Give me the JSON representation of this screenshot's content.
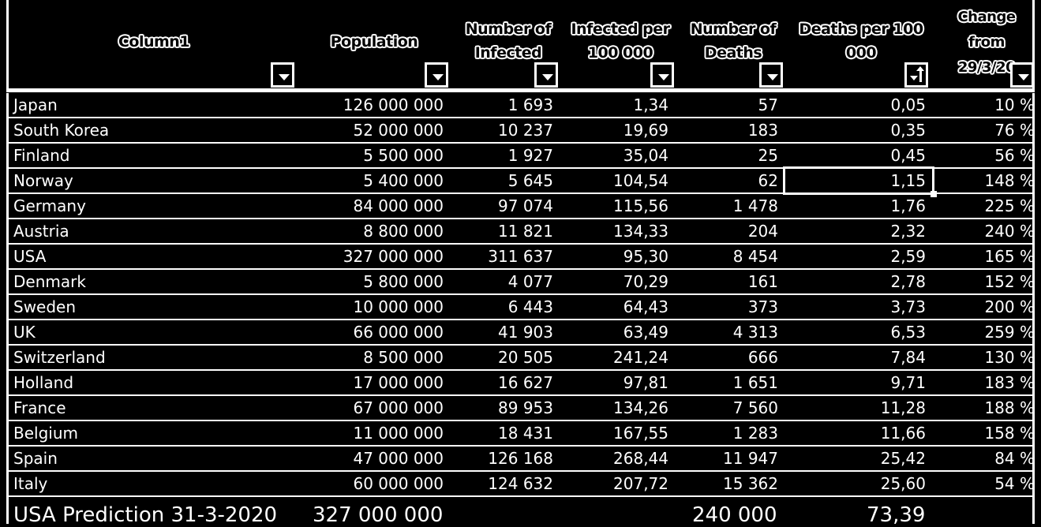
{
  "headers": {
    "col1": "Column1",
    "population": "Population",
    "infected": "Number of\nInfected",
    "infected_per": "Infected per\n100 000",
    "deaths": "Number of\nDeaths",
    "deaths_per": "Deaths per 100\n000",
    "change": "Change\nfrom\n29/3/20"
  },
  "rows": [
    {
      "country": "Japan",
      "population": "126 000 000",
      "infected": "1 693",
      "infected_per": "1,34",
      "deaths": "57",
      "deaths_per": "0,05",
      "change": "10 %"
    },
    {
      "country": "South Korea",
      "population": "52 000 000",
      "infected": "10 237",
      "infected_per": "19,69",
      "deaths": "183",
      "deaths_per": "0,35",
      "change": "76 %"
    },
    {
      "country": "Finland",
      "population": "5 500 000",
      "infected": "1 927",
      "infected_per": "35,04",
      "deaths": "25",
      "deaths_per": "0,45",
      "change": "56 %"
    },
    {
      "country": "Norway",
      "population": "5 400 000",
      "infected": "5 645",
      "infected_per": "104,54",
      "deaths": "62",
      "deaths_per": "1,15",
      "change": "148 %"
    },
    {
      "country": "Germany",
      "population": "84 000 000",
      "infected": "97 074",
      "infected_per": "115,56",
      "deaths": "1 478",
      "deaths_per": "1,76",
      "change": "225 %"
    },
    {
      "country": "Austria",
      "population": "8 800 000",
      "infected": "11 821",
      "infected_per": "134,33",
      "deaths": "204",
      "deaths_per": "2,32",
      "change": "240 %"
    },
    {
      "country": "USA",
      "population": "327 000 000",
      "infected": "311 637",
      "infected_per": "95,30",
      "deaths": "8 454",
      "deaths_per": "2,59",
      "change": "165 %"
    },
    {
      "country": "Denmark",
      "population": "5 800 000",
      "infected": "4 077",
      "infected_per": "70,29",
      "deaths": "161",
      "deaths_per": "2,78",
      "change": "152 %"
    },
    {
      "country": "Sweden",
      "population": "10 000 000",
      "infected": "6 443",
      "infected_per": "64,43",
      "deaths": "373",
      "deaths_per": "3,73",
      "change": "200 %"
    },
    {
      "country": "UK",
      "population": "66 000 000",
      "infected": "41 903",
      "infected_per": "63,49",
      "deaths": "4 313",
      "deaths_per": "6,53",
      "change": "259 %"
    },
    {
      "country": "Switzerland",
      "population": "8 500 000",
      "infected": "20 505",
      "infected_per": "241,24",
      "deaths": "666",
      "deaths_per": "7,84",
      "change": "130 %"
    },
    {
      "country": "Holland",
      "population": "17 000 000",
      "infected": "16 627",
      "infected_per": "97,81",
      "deaths": "1 651",
      "deaths_per": "9,71",
      "change": "183 %"
    },
    {
      "country": "France",
      "population": "67 000 000",
      "infected": "89 953",
      "infected_per": "134,26",
      "deaths": "7 560",
      "deaths_per": "11,28",
      "change": "188 %"
    },
    {
      "country": "Belgium",
      "population": "11 000 000",
      "infected": "18 431",
      "infected_per": "167,55",
      "deaths": "1 283",
      "deaths_per": "11,66",
      "change": "158 %"
    },
    {
      "country": "Spain",
      "population": "47 000 000",
      "infected": "126 168",
      "infected_per": "268,44",
      "deaths": "11 947",
      "deaths_per": "25,42",
      "change": "84 %"
    },
    {
      "country": "Italy",
      "population": "60 000 000",
      "infected": "124 632",
      "infected_per": "207,72",
      "deaths": "15 362",
      "deaths_per": "25,60",
      "change": "54 %"
    }
  ],
  "prediction": {
    "label": "USA Prediction 31-3-2020",
    "population": "327 000 000",
    "deaths": "240 000",
    "deaths_per": "73,39"
  },
  "selected_cell": {
    "country": "Norway",
    "column": "deaths_per"
  },
  "colors": {
    "background": "#000000",
    "foreground": "#ffffff"
  }
}
